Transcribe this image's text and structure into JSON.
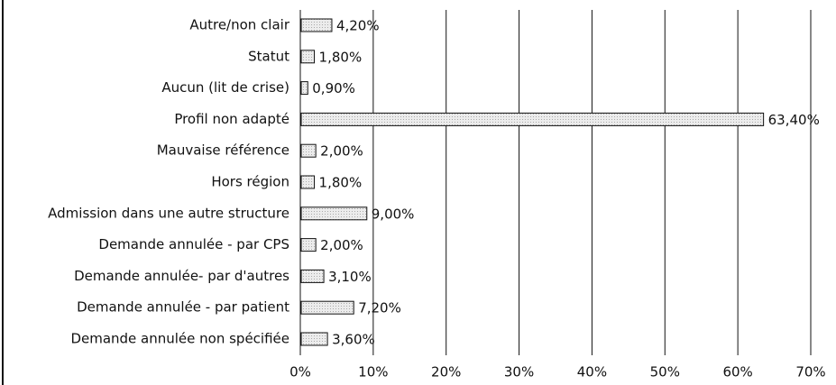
{
  "chart_data": {
    "type": "barh",
    "categories": [
      "Autre/non clair",
      "Statut",
      "Aucun (lit de crise)",
      "Profil non adapté",
      "Mauvaise référence",
      "Hors région",
      "Admission dans une autre structure",
      "Demande annulée - par CPS",
      "Demande annulée- par d'autres",
      "Demande annulée - par patient",
      "Demande annulée non spécifiée"
    ],
    "values": [
      4.2,
      1.8,
      0.9,
      63.4,
      2.0,
      1.8,
      9.0,
      2.0,
      3.1,
      7.2,
      3.6
    ],
    "value_labels": [
      "4,20%",
      "1,80%",
      "0,90%",
      "63,40%",
      "2,00%",
      "1,80%",
      "9,00%",
      "2,00%",
      "3,10%",
      "7,20%",
      "3,60%"
    ],
    "color": "#d9d9d9",
    "xlim": [
      0,
      70
    ],
    "xticks": [
      {
        "value": 0,
        "label": "0%"
      },
      {
        "value": 10,
        "label": "10%"
      },
      {
        "value": 20,
        "label": "20%"
      },
      {
        "value": 30,
        "label": "30%"
      },
      {
        "value": 40,
        "label": "40%"
      },
      {
        "value": 50,
        "label": "50%"
      },
      {
        "value": 60,
        "label": "60%"
      },
      {
        "value": 70,
        "label": "70%"
      }
    ],
    "grid": true
  }
}
